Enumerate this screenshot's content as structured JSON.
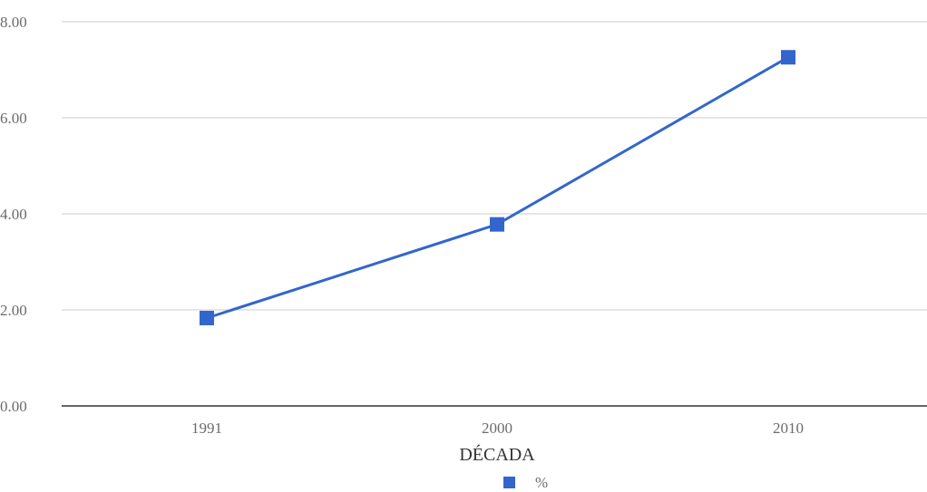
{
  "chart_data": {
    "type": "line",
    "categories": [
      "1991",
      "2000",
      "2010"
    ],
    "series": [
      {
        "name": "%",
        "values": [
          1.83,
          3.78,
          7.26
        ]
      }
    ],
    "xlabel": "DÉCADA",
    "ylabel": "",
    "ylim": [
      0,
      8
    ],
    "yticks": [
      "0.00",
      "2.00",
      "4.00",
      "6.00",
      "8.00"
    ],
    "grid": true,
    "legend_position": "bottom",
    "colors": {
      "series": "#3366cc",
      "grid": "#cccccc",
      "baseline": "#333333"
    }
  }
}
